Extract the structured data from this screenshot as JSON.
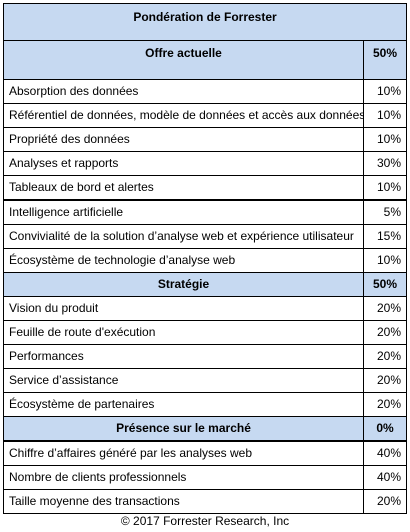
{
  "header": {
    "title": "Pondération de Forrester"
  },
  "sections": [
    {
      "name": "Offre actuelle",
      "weight": "50%",
      "rows": [
        {
          "label": "Absorption des données",
          "weight": "10%"
        },
        {
          "label": "Référentiel de données, modèle de données et accès aux données",
          "weight": "10%"
        },
        {
          "label": "Propriété des données",
          "weight": "10%"
        },
        {
          "label": "Analyses et rapports",
          "weight": "30%"
        },
        {
          "label": "Tableaux de bord et alertes",
          "weight": "10%"
        },
        {
          "label": "Intelligence artificielle",
          "weight": "5%"
        },
        {
          "label": "Convivialité de la solution d’analyse web et expérience utilisateur",
          "weight": "15%"
        },
        {
          "label": "Écosystème de technologie d’analyse web",
          "weight": "10%"
        }
      ]
    },
    {
      "name": "Stratégie",
      "weight": "50%",
      "rows": [
        {
          "label": "Vision du produit",
          "weight": "20%"
        },
        {
          "label": "Feuille de route d'exécution",
          "weight": "20%"
        },
        {
          "label": "Performances",
          "weight": "20%"
        },
        {
          "label": "Service d’assistance",
          "weight": "20%"
        },
        {
          "label": "Écosystème de partenaires",
          "weight": "20%"
        }
      ]
    },
    {
      "name": "Présence sur le marché",
      "weight": "0%",
      "rows": [
        {
          "label": "Chiffre d’affaires généré par les analyses web",
          "weight": "40%"
        },
        {
          "label": "Nombre de clients professionnels",
          "weight": "40%"
        },
        {
          "label": "Taille moyenne des transactions",
          "weight": "20%"
        }
      ]
    }
  ],
  "footer": "© 2017 Forrester Research, Inc"
}
